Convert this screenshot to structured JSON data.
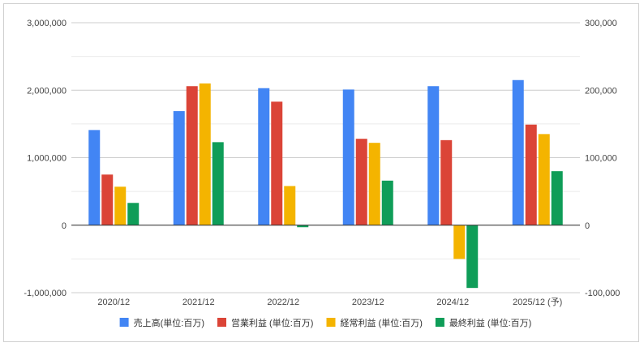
{
  "chart_data": {
    "type": "bar",
    "categories": [
      "2020/12",
      "2021/12",
      "2022/12",
      "2023/12",
      "2024/12",
      "2025/12 (予)"
    ],
    "series": [
      {
        "name": "売上高(単位:百万)",
        "axis": "left",
        "color": "#4285F4",
        "values": [
          1410000,
          1690000,
          2030000,
          2010000,
          2060000,
          2150000
        ]
      },
      {
        "name": "営業利益 (単位:百万)",
        "axis": "right",
        "color": "#DB4437",
        "values": [
          75000,
          206000,
          183000,
          128000,
          126000,
          149000
        ]
      },
      {
        "name": "経常利益 (単位:百万)",
        "axis": "right",
        "color": "#F4B400",
        "values": [
          57000,
          210000,
          58000,
          122000,
          -50000,
          135000
        ]
      },
      {
        "name": "最終利益 (単位:百万)",
        "axis": "right",
        "color": "#0F9D58",
        "values": [
          33000,
          123000,
          -3000,
          66000,
          -93000,
          80000
        ]
      }
    ],
    "y_left": {
      "ticks": [
        "3,000,000",
        "2,000,000",
        "1,000,000",
        "0",
        "-1,000,000"
      ],
      "tick_values": [
        3000000,
        2000000,
        1000000,
        0,
        -1000000
      ],
      "ylim": [
        -1000000,
        3000000
      ]
    },
    "y_right": {
      "ticks": [
        "300,000",
        "200,000",
        "100,000",
        "0",
        "-100,000"
      ],
      "tick_values": [
        300000,
        200000,
        100000,
        0,
        -100000
      ],
      "ylim": [
        -100000,
        300000
      ]
    },
    "grid": true,
    "legend_position": "bottom",
    "title": "",
    "xlabel": "",
    "ylabel": ""
  }
}
